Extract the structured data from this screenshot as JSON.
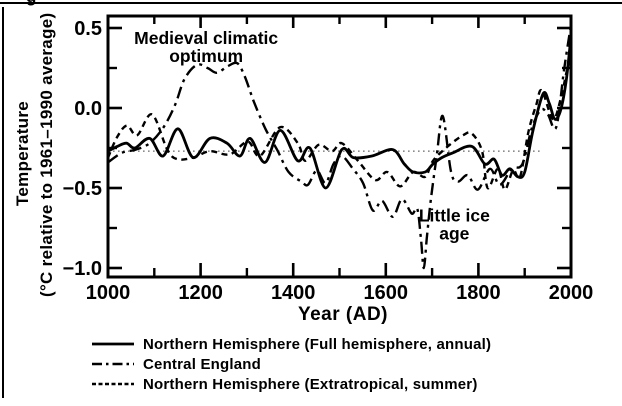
{
  "figure": {
    "fragment_text": "g"
  },
  "chart_data": {
    "type": "line",
    "title": "",
    "xlabel": "Year (AD)",
    "ylabel_line1": "Temperature",
    "ylabel_line2": "(°C relative to 1961–1990 average)",
    "xlim": [
      1000,
      2000
    ],
    "ylim": [
      -1.05,
      0.57
    ],
    "grid": false,
    "x_major_ticks": [
      1000,
      1200,
      1400,
      1600,
      1800,
      2000
    ],
    "x_major_tick_labels": [
      "1000",
      "1200",
      "1400",
      "1600",
      "1800",
      "2000"
    ],
    "x_minor_ticks": [
      1100,
      1300,
      1500,
      1700,
      1900
    ],
    "y_major_ticks": [
      0.5,
      0.0,
      -0.5,
      -1.0
    ],
    "y_major_tick_labels": [
      "0.5",
      "0.0",
      "−0.5",
      "−1.0"
    ],
    "y_minor_ticks": [
      0.25,
      -0.25,
      -0.75
    ],
    "reference_line": {
      "value": -0.27,
      "year_start": 1000,
      "year_end": 1938,
      "color": "#8c8c8c",
      "style": "dotted"
    },
    "annotations": [
      {
        "id": "medieval-climatic-optimum",
        "lines": [
          "Medieval climatic",
          "optimum"
        ],
        "year": 1212,
        "value": 0.4
      },
      {
        "id": "little-ice-age",
        "lines": [
          "Little ice",
          "age"
        ],
        "year": 1748,
        "value": -0.71
      }
    ],
    "series": [
      {
        "id": "nh-annual",
        "name": "Northern Hemisphere (Full hemisphere, annual)",
        "style": "solid",
        "points": [
          [
            1000,
            -0.27
          ],
          [
            1020,
            -0.24
          ],
          [
            1040,
            -0.22
          ],
          [
            1058,
            -0.25
          ],
          [
            1090,
            -0.19
          ],
          [
            1119,
            -0.3
          ],
          [
            1151,
            -0.13
          ],
          [
            1184,
            -0.31
          ],
          [
            1220,
            -0.19
          ],
          [
            1257,
            -0.22
          ],
          [
            1285,
            -0.3
          ],
          [
            1307,
            -0.19
          ],
          [
            1339,
            -0.34
          ],
          [
            1372,
            -0.14
          ],
          [
            1410,
            -0.33
          ],
          [
            1436,
            -0.25
          ],
          [
            1470,
            -0.5
          ],
          [
            1505,
            -0.26
          ],
          [
            1530,
            -0.31
          ],
          [
            1570,
            -0.3
          ],
          [
            1615,
            -0.26
          ],
          [
            1640,
            -0.35
          ],
          [
            1659,
            -0.4
          ],
          [
            1685,
            -0.4
          ],
          [
            1702,
            -0.35
          ],
          [
            1721,
            -0.31
          ],
          [
            1745,
            -0.28
          ],
          [
            1786,
            -0.24
          ],
          [
            1814,
            -0.35
          ],
          [
            1834,
            -0.32
          ],
          [
            1851,
            -0.42
          ],
          [
            1868,
            -0.38
          ],
          [
            1885,
            -0.43
          ],
          [
            1900,
            -0.4
          ],
          [
            1918,
            -0.14
          ],
          [
            1940,
            0.09
          ],
          [
            1953,
            0.03
          ],
          [
            1965,
            -0.07
          ],
          [
            1978,
            -0.01
          ],
          [
            1990,
            0.18
          ],
          [
            2000,
            0.45
          ]
        ]
      },
      {
        "id": "central-england",
        "name": "Central England",
        "style": "dashdot",
        "points": [
          [
            1000,
            -0.34
          ],
          [
            1030,
            -0.28
          ],
          [
            1060,
            -0.26
          ],
          [
            1090,
            -0.22
          ],
          [
            1120,
            -0.12
          ],
          [
            1145,
            0.02
          ],
          [
            1165,
            0.18
          ],
          [
            1192,
            0.27
          ],
          [
            1215,
            0.25
          ],
          [
            1235,
            0.22
          ],
          [
            1258,
            0.26
          ],
          [
            1279,
            0.28
          ],
          [
            1295,
            0.2
          ],
          [
            1315,
            0.04
          ],
          [
            1340,
            -0.13
          ],
          [
            1365,
            -0.26
          ],
          [
            1390,
            -0.4
          ],
          [
            1418,
            -0.46
          ],
          [
            1432,
            -0.48
          ],
          [
            1451,
            -0.39
          ],
          [
            1470,
            -0.47
          ],
          [
            1487,
            -0.35
          ],
          [
            1505,
            -0.3
          ],
          [
            1529,
            -0.38
          ],
          [
            1551,
            -0.47
          ],
          [
            1572,
            -0.64
          ],
          [
            1592,
            -0.58
          ],
          [
            1615,
            -0.68
          ],
          [
            1635,
            -0.57
          ],
          [
            1656,
            -0.66
          ],
          [
            1668,
            -0.63
          ],
          [
            1676,
            -0.82
          ],
          [
            1682,
            -1.0
          ],
          [
            1689,
            -0.8
          ],
          [
            1697,
            -0.58
          ],
          [
            1710,
            -0.3
          ],
          [
            1723,
            -0.05
          ],
          [
            1741,
            -0.4
          ],
          [
            1756,
            -0.46
          ],
          [
            1777,
            -0.42
          ],
          [
            1799,
            -0.51
          ],
          [
            1825,
            -0.38
          ],
          [
            1846,
            -0.48
          ],
          [
            1872,
            -0.38
          ],
          [
            1895,
            -0.35
          ],
          [
            1915,
            -0.13
          ],
          [
            1935,
            -0.01
          ],
          [
            1950,
            -0.04
          ],
          [
            1968,
            -0.12
          ],
          [
            1985,
            0.24
          ],
          [
            2000,
            0.52
          ]
        ]
      },
      {
        "id": "nh-summer",
        "name": "Northern Hemisphere (Extratropical, summer)",
        "style": "dashed",
        "points": [
          [
            1000,
            -0.31
          ],
          [
            1020,
            -0.18
          ],
          [
            1041,
            -0.11
          ],
          [
            1063,
            -0.17
          ],
          [
            1095,
            -0.04
          ],
          [
            1128,
            -0.26
          ],
          [
            1150,
            -0.32
          ],
          [
            1184,
            -0.31
          ],
          [
            1220,
            -0.27
          ],
          [
            1263,
            -0.29
          ],
          [
            1302,
            -0.21
          ],
          [
            1328,
            -0.3
          ],
          [
            1372,
            -0.12
          ],
          [
            1410,
            -0.22
          ],
          [
            1426,
            -0.33
          ],
          [
            1455,
            -0.23
          ],
          [
            1484,
            -0.27
          ],
          [
            1505,
            -0.22
          ],
          [
            1540,
            -0.33
          ],
          [
            1577,
            -0.45
          ],
          [
            1603,
            -0.4
          ],
          [
            1631,
            -0.49
          ],
          [
            1659,
            -0.4
          ],
          [
            1685,
            -0.43
          ],
          [
            1702,
            -0.33
          ],
          [
            1734,
            -0.24
          ],
          [
            1767,
            -0.17
          ],
          [
            1786,
            -0.16
          ],
          [
            1808,
            -0.27
          ],
          [
            1820,
            -0.5
          ],
          [
            1842,
            -0.38
          ],
          [
            1857,
            -0.51
          ],
          [
            1875,
            -0.39
          ],
          [
            1890,
            -0.43
          ],
          [
            1908,
            -0.15
          ],
          [
            1925,
            0.02
          ],
          [
            1937,
            0.11
          ],
          [
            1961,
            -0.07
          ],
          [
            1978,
            0.06
          ],
          [
            1990,
            0.22
          ],
          [
            2000,
            0.33
          ]
        ]
      }
    ]
  },
  "legend": {
    "items": [
      {
        "label": "Northern Hemisphere (Full hemisphere, annual)",
        "style": "solid"
      },
      {
        "label": "Central England",
        "style": "dashdot"
      },
      {
        "label": "Northern Hemisphere (Extratropical, summer)",
        "style": "dashed"
      }
    ]
  }
}
